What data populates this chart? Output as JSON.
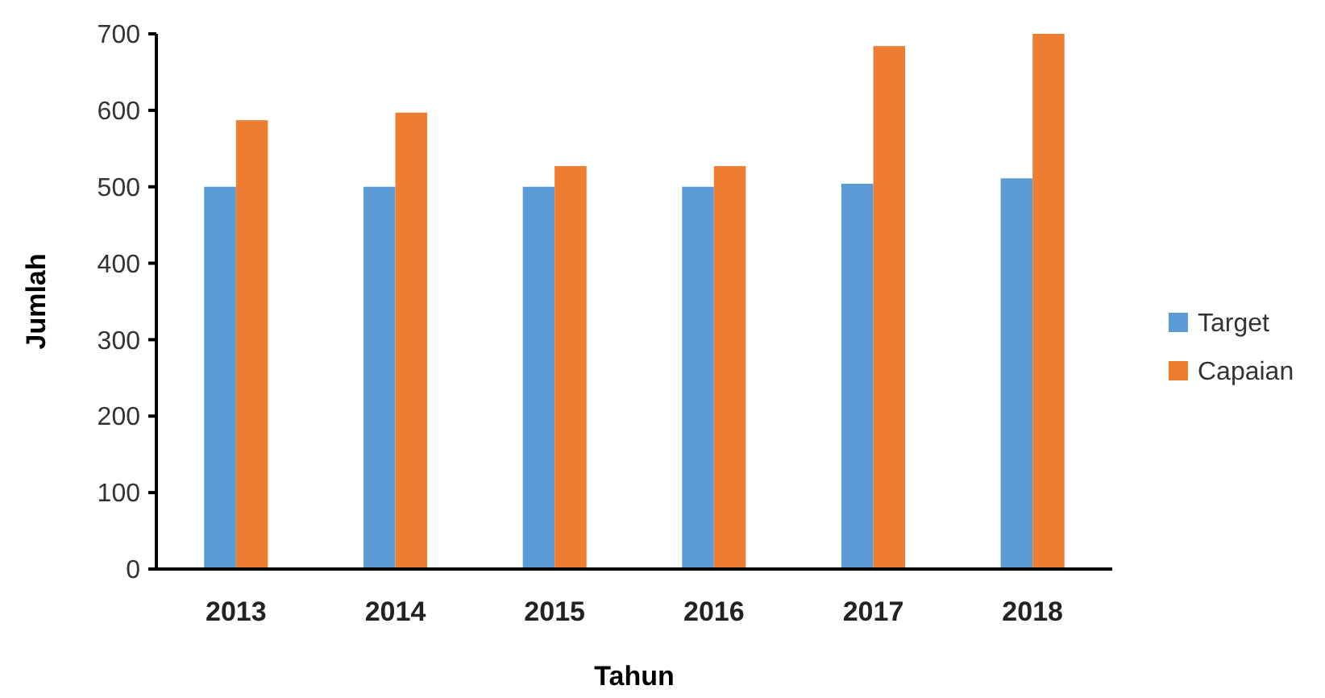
{
  "chart_data": {
    "type": "bar",
    "xlabel": "Tahun",
    "ylabel": "Jumlah",
    "categories": [
      "2013",
      "2014",
      "2015",
      "2016",
      "2017",
      "2018"
    ],
    "series": [
      {
        "name": "Target",
        "color": "#5b9bd5",
        "values": [
          500,
          500,
          500,
          500,
          504,
          511
        ]
      },
      {
        "name": "Capaian",
        "color": "#ed7d31",
        "values": [
          587,
          597,
          527,
          527,
          684,
          700
        ]
      }
    ],
    "ylim": [
      0,
      700
    ],
    "yticks": [
      0,
      100,
      200,
      300,
      400,
      500,
      600,
      700
    ],
    "grid": false,
    "legend": "right"
  }
}
